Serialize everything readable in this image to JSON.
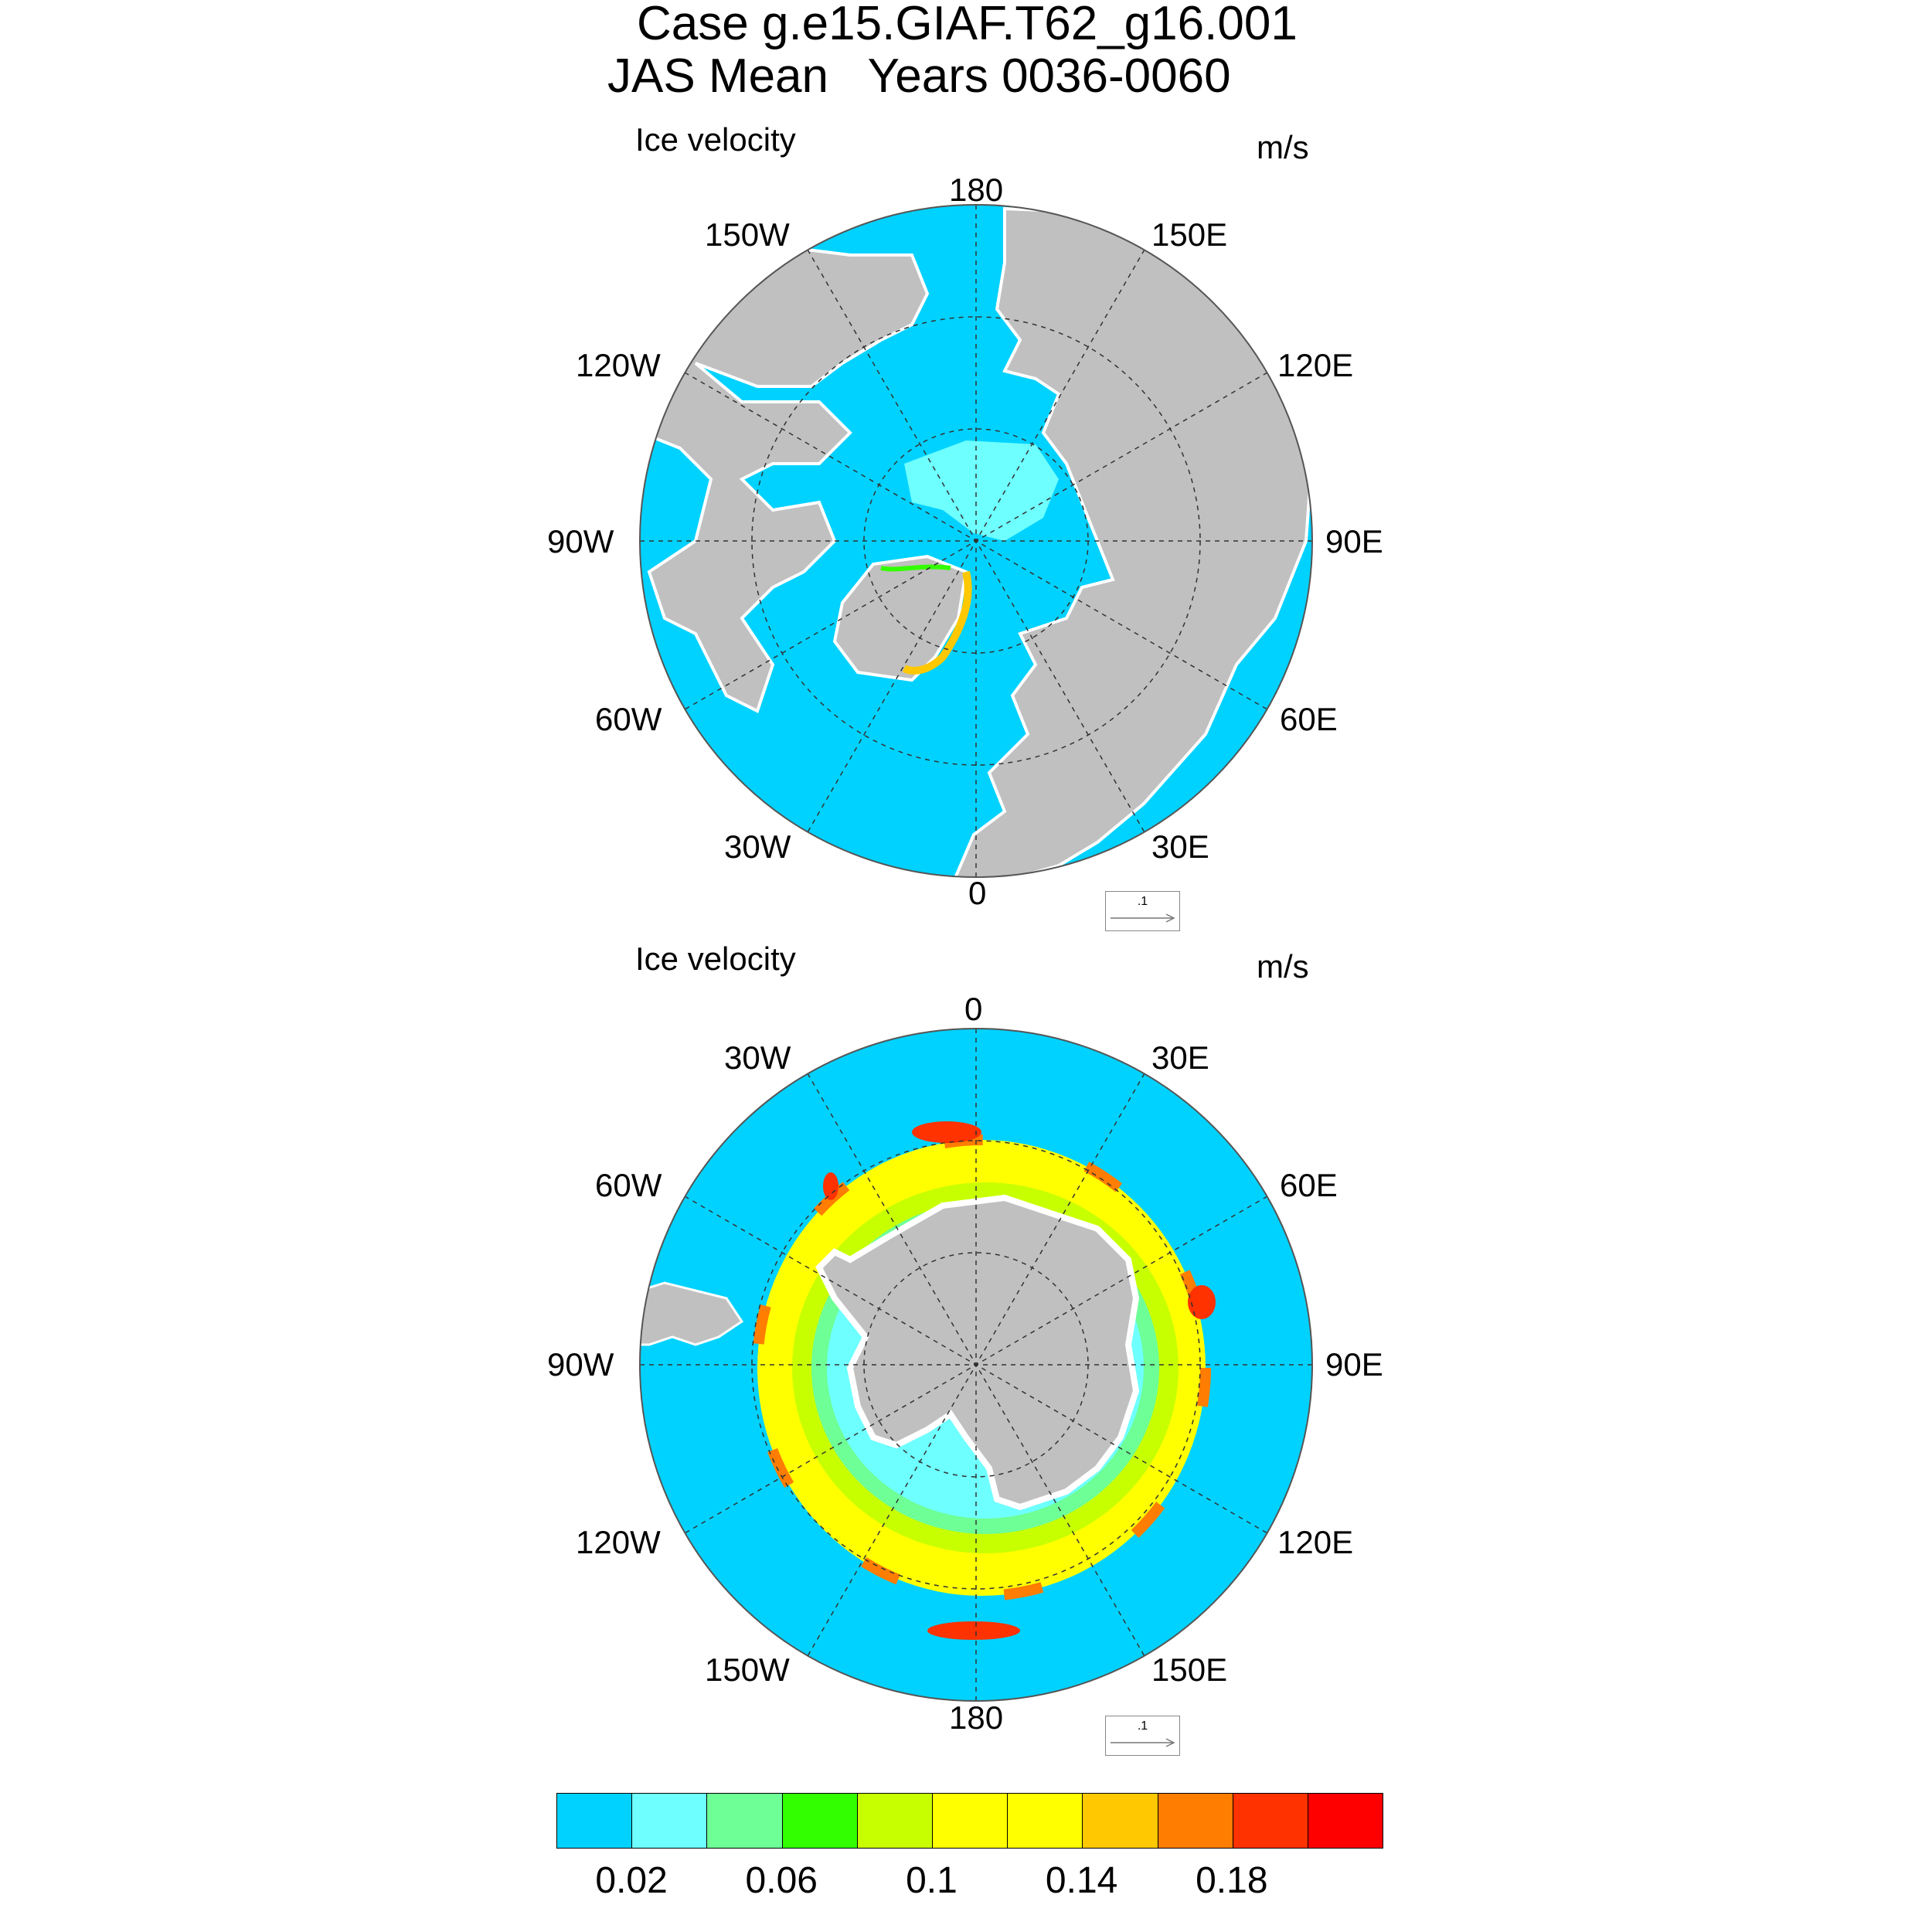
{
  "title_line1": "Case g.e15.GIAF.T62_g16.001",
  "title_line2": "JAS Mean   Years 0036-0060",
  "panels": [
    {
      "id": "north",
      "variable": "Ice velocity",
      "units": "m/s",
      "lon_labels": {
        "top": "180",
        "bottom": "0",
        "left": "90W",
        "right": "90E",
        "upper_left_1": "150W",
        "upper_left_2": "120W",
        "upper_right_1": "150E",
        "upper_right_2": "120E",
        "lower_left_1": "60W",
        "lower_left_2": "30W",
        "lower_right_1": "60E",
        "lower_right_2": "30E"
      },
      "ref_vector_label": ".1"
    },
    {
      "id": "south",
      "variable": "Ice velocity",
      "units": "m/s",
      "lon_labels": {
        "top": "0",
        "bottom": "180",
        "left": "90W",
        "right": "90E",
        "upper_left_1": "30W",
        "upper_left_2": "60W",
        "upper_right_1": "30E",
        "upper_right_2": "60E",
        "lower_left_1": "120W",
        "lower_left_2": "150W",
        "lower_right_1": "120E",
        "lower_right_2": "150E"
      },
      "ref_vector_label": ".1"
    }
  ],
  "colorbar": {
    "colors": [
      "#00d2ff",
      "#6effff",
      "#6eff96",
      "#32ff00",
      "#c8ff00",
      "#ffff00",
      "#ffff00",
      "#ffc800",
      "#ff7d00",
      "#ff3200",
      "#ff0000"
    ],
    "tick_labels": [
      "0.02",
      "0.06",
      "0.1",
      "0.14",
      "0.18"
    ]
  },
  "colors": {
    "ocean": "#00d2ff",
    "land": "#c0c0c0",
    "coast": "#ffffff"
  }
}
